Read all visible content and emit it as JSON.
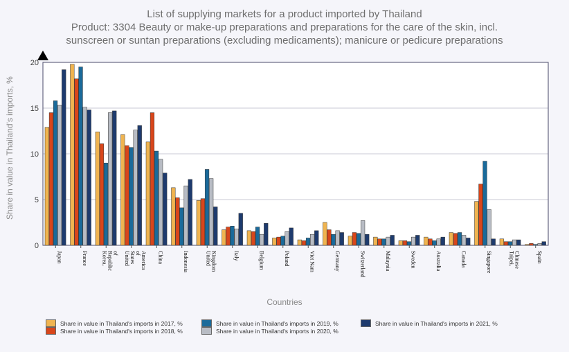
{
  "chart_data": {
    "type": "bar",
    "title_lines": [
      "List of supplying markets for a product imported by Thailand",
      "Product: 3304 Beauty or make-up preparations and preparations for the care of the skin, incl.",
      "sunscreen or suntan preparations (excluding medicaments); manicure or pedicure preparations"
    ],
    "xlabel": "Countries",
    "ylabel": "Share in value in Thailand's imports, %",
    "ylim": [
      0,
      20
    ],
    "yticks": [
      "0",
      "5",
      "10",
      "15",
      "20"
    ],
    "grid": true,
    "legend_position": "bottom",
    "categories": [
      "Japan",
      "France",
      "Korea, Republic of",
      "United States of America",
      "China",
      "Indonesia",
      "United Kingdom",
      "Italy",
      "Belgium",
      "Poland",
      "Viet Nam",
      "Germany",
      "Switzerland",
      "Malaysia",
      "Sweden",
      "Australia",
      "Canada",
      "Singapore",
      "Taipei, Chinese",
      "Spain"
    ],
    "series": [
      {
        "name": "Share in value in Thailand's imports in 2017, %",
        "color": "#f0b450",
        "values": [
          12.9,
          19.8,
          12.4,
          12.1,
          11.3,
          6.3,
          4.9,
          1.7,
          1.6,
          0.8,
          0.6,
          2.5,
          1.0,
          0.9,
          0.5,
          0.9,
          1.4,
          4.8,
          0.7,
          0.1
        ]
      },
      {
        "name": "Share in value in Thailand's imports in 2018, %",
        "color": "#d8461b",
        "values": [
          14.5,
          18.2,
          11.1,
          10.9,
          14.5,
          5.2,
          5.1,
          2.0,
          1.5,
          0.9,
          0.5,
          1.7,
          1.4,
          0.7,
          0.5,
          0.7,
          1.3,
          6.7,
          0.4,
          0.2
        ]
      },
      {
        "name": "Share in value in Thailand's imports in 2019, %",
        "color": "#1a6a9a",
        "values": [
          15.8,
          19.5,
          9.0,
          10.7,
          10.3,
          4.1,
          8.3,
          2.1,
          2.0,
          1.0,
          0.8,
          1.2,
          1.3,
          0.7,
          0.4,
          0.5,
          1.4,
          9.2,
          0.4,
          0.1
        ]
      },
      {
        "name": "Share in value in Thailand's imports in 2020, %",
        "color": "#b8bcc4",
        "values": [
          15.3,
          15.1,
          14.5,
          12.6,
          9.4,
          6.5,
          7.3,
          1.8,
          1.2,
          1.5,
          1.2,
          1.6,
          2.7,
          0.9,
          0.9,
          0.7,
          1.1,
          3.9,
          0.6,
          0.2
        ]
      },
      {
        "name": "Share in value in Thailand's imports in 2021, %",
        "color": "#1e3b6e",
        "values": [
          19.2,
          14.8,
          14.7,
          13.1,
          7.9,
          7.2,
          4.2,
          3.5,
          2.4,
          1.9,
          1.6,
          1.4,
          1.2,
          1.1,
          1.1,
          0.9,
          0.8,
          0.7,
          0.6,
          0.4
        ]
      }
    ]
  }
}
